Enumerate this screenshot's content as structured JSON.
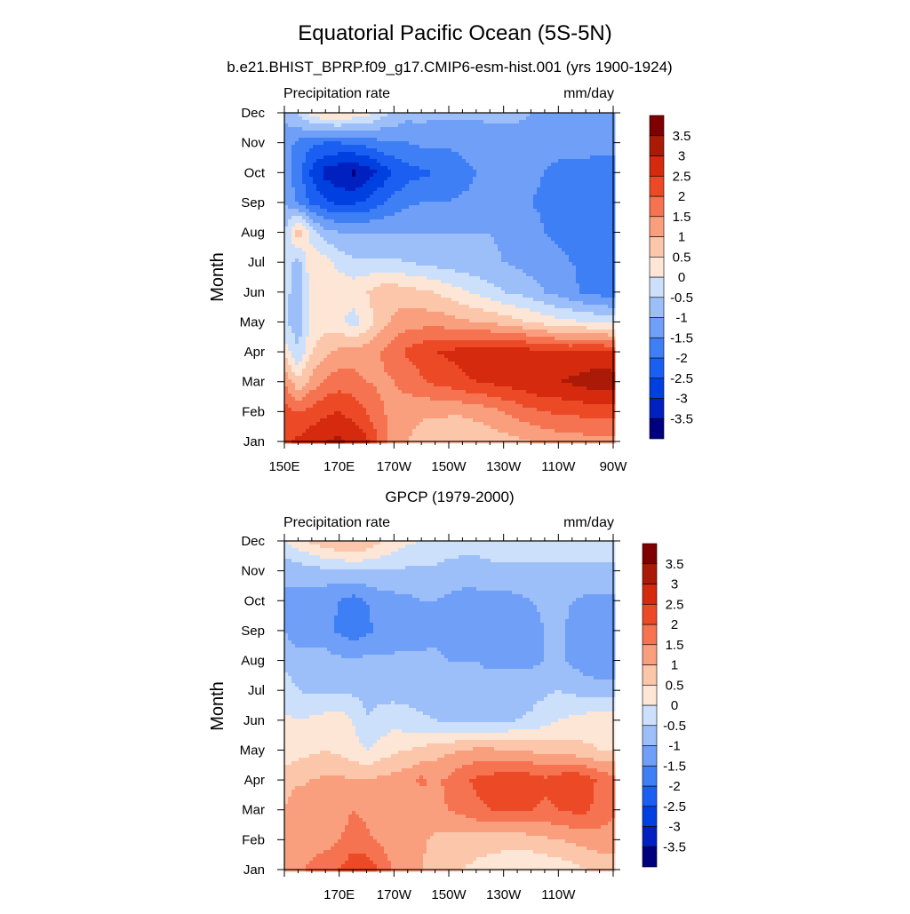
{
  "figure": {
    "title": "Equatorial Pacific Ocean (5S-5N)",
    "subtitle": "b.e21.BHIST_BPRP.f09_g17.CMIP6-esm-hist.001 (yrs 1900-1924)"
  },
  "colorbar": {
    "levels": [
      "-3.5",
      "-3",
      "-2.5",
      "-2",
      "-1.5",
      "-1",
      "-0.5",
      "0",
      "0.5",
      "1",
      "1.5",
      "2",
      "2.5",
      "3",
      "3.5"
    ],
    "colors": [
      "#00007f",
      "#0020bf",
      "#0040e0",
      "#1a5ff2",
      "#3f7ff5",
      "#6f9ff7",
      "#9dbff9",
      "#cde0fb",
      "#fde6d6",
      "#fcc6aa",
      "#fa9f7d",
      "#f57350",
      "#ec4a26",
      "#d52a0d",
      "#aa1a06",
      "#7f0000"
    ]
  },
  "chart_data": [
    {
      "type": "heatmap",
      "panel_title": "",
      "left_label": "Precipitation rate",
      "right_label": "mm/day",
      "ylabel": "Month",
      "xlabel": "",
      "x_range": [
        150,
        270
      ],
      "x_units": "degrees east",
      "x_ticks": [
        150,
        170,
        190,
        210,
        230,
        250,
        270
      ],
      "x_tick_labels": [
        "150E",
        "170E",
        "170W",
        "150W",
        "130W",
        "110W",
        "90W"
      ],
      "y_tick_labels": [
        "Jan",
        "Feb",
        "Mar",
        "Apr",
        "May",
        "Jun",
        "Jul",
        "Aug",
        "Sep",
        "Oct",
        "Nov",
        "Dec"
      ],
      "x": [
        150,
        155,
        160,
        165,
        170,
        175,
        180,
        185,
        190,
        195,
        200,
        205,
        210,
        215,
        220,
        225,
        230,
        235,
        240,
        245,
        250,
        255,
        260,
        265,
        270
      ],
      "z": [
        [
          2.4,
          2.6,
          2.8,
          3.0,
          3.1,
          2.9,
          2.6,
          1.9,
          1.2,
          1.0,
          0.8,
          0.6,
          0.5,
          0.5,
          0.6,
          0.7,
          0.8,
          0.9,
          1.0,
          1.1,
          1.2,
          1.2,
          1.3,
          1.3,
          1.3
        ],
        [
          2.2,
          2.0,
          2.2,
          2.4,
          2.5,
          2.3,
          2.0,
          1.6,
          1.3,
          1.2,
          1.1,
          1.1,
          1.1,
          1.1,
          1.2,
          1.3,
          1.5,
          1.7,
          1.9,
          2.0,
          2.1,
          2.1,
          2.2,
          2.2,
          2.2
        ],
        [
          1.5,
          0.6,
          1.2,
          1.6,
          1.8,
          1.7,
          1.5,
          1.4,
          1.5,
          1.7,
          1.9,
          2.1,
          2.2,
          2.4,
          2.5,
          2.6,
          2.7,
          2.8,
          2.9,
          3.0,
          3.0,
          3.1,
          3.2,
          3.4,
          3.3
        ],
        [
          0.3,
          -0.5,
          0.5,
          0.9,
          1.1,
          1.2,
          1.3,
          1.5,
          1.8,
          2.1,
          2.3,
          2.5,
          2.6,
          2.7,
          2.8,
          2.8,
          2.9,
          2.8,
          2.7,
          2.6,
          2.5,
          2.5,
          2.6,
          2.6,
          2.5
        ],
        [
          -0.4,
          -0.8,
          0.1,
          0.3,
          0.2,
          -0.3,
          0.2,
          0.8,
          1.1,
          1.3,
          1.3,
          1.3,
          1.2,
          1.1,
          1.0,
          0.9,
          0.8,
          0.6,
          0.5,
          0.3,
          0.2,
          0.1,
          0.0,
          -0.1,
          -0.2
        ],
        [
          -0.3,
          -0.8,
          0.2,
          0.5,
          0.4,
          0.3,
          0.5,
          0.8,
          0.8,
          0.7,
          0.6,
          0.5,
          0.3,
          0.1,
          -0.1,
          -0.3,
          -0.5,
          -0.6,
          -0.8,
          -1.0,
          -1.2,
          -1.4,
          -1.6,
          -1.7,
          -1.8
        ],
        [
          -0.3,
          -0.7,
          0.4,
          0.2,
          -0.2,
          -0.4,
          -0.4,
          -0.4,
          -0.4,
          -0.5,
          -0.6,
          -0.7,
          -0.8,
          -0.8,
          -0.9,
          -0.9,
          -1.0,
          -1.1,
          -1.2,
          -1.3,
          -1.4,
          -1.5,
          -1.6,
          -1.6,
          -1.7
        ],
        [
          -0.6,
          0.9,
          -0.3,
          -0.8,
          -1.0,
          -1.0,
          -1.0,
          -1.0,
          -1.0,
          -1.0,
          -1.0,
          -1.0,
          -1.0,
          -1.0,
          -1.0,
          -1.0,
          -1.1,
          -1.2,
          -1.3,
          -1.5,
          -1.6,
          -1.7,
          -1.7,
          -1.7,
          -1.7
        ],
        [
          -1.0,
          -1.6,
          -2.1,
          -2.4,
          -2.6,
          -2.6,
          -2.4,
          -2.1,
          -1.8,
          -1.6,
          -1.5,
          -1.5,
          -1.5,
          -1.4,
          -1.4,
          -1.4,
          -1.4,
          -1.4,
          -1.5,
          -1.6,
          -1.8,
          -1.9,
          -2.0,
          -2.0,
          -2.0
        ],
        [
          -1.2,
          -1.8,
          -2.6,
          -3.2,
          -3.4,
          -3.6,
          -3.3,
          -2.9,
          -2.5,
          -2.2,
          -2.1,
          -2.0,
          -1.9,
          -1.7,
          -1.5,
          -1.4,
          -1.4,
          -1.4,
          -1.4,
          -1.5,
          -1.7,
          -1.8,
          -1.9,
          -2.0,
          -2.0
        ],
        [
          -1.3,
          -1.6,
          -1.9,
          -2.0,
          -2.0,
          -1.9,
          -1.8,
          -1.6,
          -1.5,
          -1.5,
          -1.4,
          -1.4,
          -1.4,
          -1.3,
          -1.3,
          -1.2,
          -1.2,
          -1.2,
          -1.2,
          -1.2,
          -1.2,
          -1.1,
          -1.1,
          -1.1,
          -1.1
        ],
        [
          -0.8,
          -0.5,
          0.3,
          0.5,
          0.6,
          0.4,
          0.2,
          -0.3,
          -0.6,
          -0.8,
          -0.8,
          -0.9,
          -0.9,
          -0.9,
          -0.9,
          -0.9,
          -0.9,
          -0.9,
          -1.0,
          -1.0,
          -1.0,
          -1.0,
          -1.0,
          -1.0,
          -1.0
        ]
      ]
    },
    {
      "type": "heatmap",
      "panel_title": "GPCP (1979-2000)",
      "left_label": "Precipitation rate",
      "right_label": "mm/day",
      "ylabel": "Month",
      "xlabel": "",
      "x_range": [
        150,
        270
      ],
      "x_units": "degrees east",
      "x_ticks": [
        170,
        190,
        210,
        230,
        250
      ],
      "x_tick_labels": [
        "170E",
        "170W",
        "150W",
        "130W",
        "110W"
      ],
      "y_tick_labels": [
        "Jan",
        "Feb",
        "Mar",
        "Apr",
        "May",
        "Jun",
        "Jul",
        "Aug",
        "Sep",
        "Oct",
        "Nov",
        "Dec"
      ],
      "x": [
        150,
        155,
        160,
        165,
        170,
        175,
        180,
        185,
        190,
        195,
        200,
        205,
        210,
        215,
        220,
        225,
        230,
        235,
        240,
        245,
        250,
        255,
        260,
        265,
        270
      ],
      "z": [
        [
          1.3,
          1.4,
          1.6,
          1.8,
          2.0,
          2.3,
          2.4,
          1.9,
          1.4,
          1.2,
          1.0,
          0.8,
          0.6,
          0.5,
          0.4,
          0.3,
          0.2,
          0.1,
          0.0,
          0.1,
          0.2,
          0.3,
          0.5,
          0.6,
          0.6
        ],
        [
          1.1,
          1.4,
          1.3,
          1.3,
          1.5,
          1.8,
          1.6,
          1.4,
          1.3,
          1.2,
          1.1,
          0.9,
          0.8,
          0.7,
          0.7,
          0.7,
          0.7,
          0.7,
          0.8,
          0.9,
          1.0,
          1.1,
          1.2,
          1.3,
          1.3
        ],
        [
          1.0,
          1.4,
          1.2,
          1.0,
          1.2,
          1.5,
          1.4,
          1.2,
          1.1,
          1.1,
          1.2,
          1.4,
          1.5,
          1.7,
          1.9,
          2.0,
          2.1,
          2.0,
          2.0,
          1.9,
          2.0,
          2.1,
          2.1,
          1.8,
          1.6
        ],
        [
          0.8,
          0.9,
          1.0,
          1.1,
          1.1,
          1.0,
          1.0,
          1.1,
          1.2,
          1.3,
          1.6,
          1.4,
          1.6,
          1.9,
          2.1,
          2.2,
          2.4,
          2.4,
          2.3,
          2.1,
          2.3,
          2.4,
          2.3,
          1.9,
          1.7
        ],
        [
          0.2,
          0.3,
          0.4,
          0.5,
          0.4,
          0.2,
          0.0,
          0.2,
          0.4,
          0.5,
          0.6,
          0.8,
          0.9,
          1.0,
          1.1,
          1.1,
          1.0,
          1.0,
          0.9,
          0.8,
          0.8,
          0.7,
          0.6,
          0.5,
          0.5
        ],
        [
          0.1,
          0.0,
          0.1,
          0.2,
          0.3,
          0.0,
          -0.5,
          -0.3,
          -0.2,
          -0.3,
          -0.4,
          -0.5,
          -0.6,
          -0.7,
          -0.7,
          -0.7,
          -0.6,
          -0.5,
          -0.4,
          -0.2,
          0.0,
          0.1,
          0.2,
          0.3,
          0.3
        ],
        [
          -0.3,
          -0.5,
          -0.6,
          -0.6,
          -0.6,
          -0.6,
          -0.6,
          -0.7,
          -0.7,
          -0.7,
          -0.8,
          -0.8,
          -0.8,
          -0.8,
          -0.8,
          -0.8,
          -0.7,
          -0.7,
          -0.7,
          -0.6,
          -0.5,
          -0.6,
          -0.7,
          -0.8,
          -0.8
        ],
        [
          -0.6,
          -0.7,
          -0.8,
          -0.8,
          -0.9,
          -0.9,
          -0.9,
          -0.9,
          -0.9,
          -0.9,
          -0.9,
          -0.9,
          -1.0,
          -1.0,
          -1.0,
          -1.1,
          -1.1,
          -1.1,
          -1.1,
          -1.0,
          -0.9,
          -1.1,
          -1.3,
          -1.4,
          -1.4
        ],
        [
          -1.0,
          -1.5,
          -1.3,
          -1.3,
          -1.6,
          -1.8,
          -1.6,
          -1.4,
          -1.3,
          -1.2,
          -1.2,
          -1.1,
          -1.2,
          -1.3,
          -1.3,
          -1.3,
          -1.3,
          -1.3,
          -1.2,
          -1.0,
          -0.9,
          -1.1,
          -1.2,
          -1.3,
          -1.3
        ],
        [
          -1.1,
          -1.2,
          -1.3,
          -1.4,
          -1.5,
          -1.7,
          -1.5,
          -1.3,
          -1.2,
          -1.1,
          -1.0,
          -1.0,
          -1.1,
          -1.2,
          -1.2,
          -1.2,
          -1.2,
          -1.1,
          -1.0,
          -0.9,
          -0.9,
          -1.0,
          -1.1,
          -1.1,
          -1.1
        ],
        [
          -0.9,
          -0.8,
          -0.7,
          -0.6,
          -0.6,
          -0.5,
          -0.5,
          -0.5,
          -0.5,
          -0.6,
          -0.6,
          -0.6,
          -0.7,
          -0.7,
          -0.7,
          -0.6,
          -0.6,
          -0.6,
          -0.6,
          -0.6,
          -0.6,
          -0.6,
          -0.6,
          -0.6,
          -0.6
        ],
        [
          0.0,
          0.3,
          0.6,
          0.9,
          1.0,
          1.1,
          0.9,
          0.6,
          0.3,
          0.1,
          0.0,
          -0.1,
          -0.2,
          -0.3,
          -0.3,
          -0.3,
          -0.2,
          -0.2,
          -0.2,
          -0.2,
          -0.2,
          -0.2,
          -0.2,
          -0.3,
          -0.3
        ]
      ]
    }
  ]
}
